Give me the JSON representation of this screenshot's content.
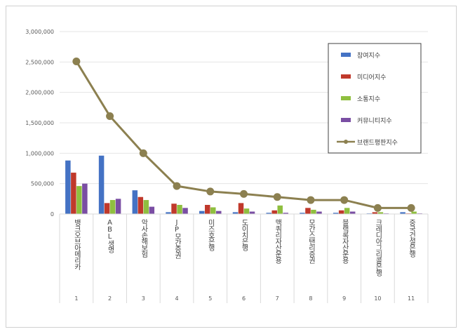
{
  "chart_data": {
    "type": "bar",
    "title": "",
    "xlabel": "",
    "ylabel": "",
    "ylim": [
      0,
      3000000
    ],
    "yticks": [
      "0",
      "500,000",
      "1,000,000",
      "1,500,000",
      "2,000,000",
      "2,500,000",
      "3,000,000"
    ],
    "grid": true,
    "legend_position": "top-right",
    "categories": [
      "뱅크오브아메리카",
      "ABL생명",
      "악사손해보험",
      "JP모간증권",
      "미즈호은행",
      "도이치은행",
      "맥쿼리자산운용",
      "모간스탠리증권",
      "블랙록자산운용",
      "크레디아그리콜은행",
      "중국건설은행"
    ],
    "ranks": [
      "1",
      "2",
      "3",
      "4",
      "5",
      "6",
      "7",
      "8",
      "9",
      "10",
      "11"
    ],
    "series": [
      {
        "name": "참여지수",
        "type": "bar",
        "color": "#4472c4",
        "values": [
          880000,
          960000,
          390000,
          30000,
          50000,
          30000,
          20000,
          20000,
          20000,
          10000,
          30000
        ]
      },
      {
        "name": "미디어지수",
        "type": "bar",
        "color": "#c0392b",
        "values": [
          680000,
          180000,
          280000,
          170000,
          150000,
          180000,
          60000,
          100000,
          60000,
          30000,
          10000
        ]
      },
      {
        "name": "소통지수",
        "type": "bar",
        "color": "#8fbf3f",
        "values": [
          460000,
          230000,
          230000,
          150000,
          110000,
          90000,
          140000,
          70000,
          100000,
          30000,
          40000
        ]
      },
      {
        "name": "커뮤니티지수",
        "type": "bar",
        "color": "#7a4ea3",
        "values": [
          500000,
          250000,
          120000,
          100000,
          50000,
          40000,
          20000,
          40000,
          40000,
          10000,
          10000
        ]
      },
      {
        "name": "브랜드평판지수",
        "type": "line",
        "color": "#8c8050",
        "values": [
          2510000,
          1610000,
          1000000,
          460000,
          370000,
          330000,
          280000,
          230000,
          230000,
          100000,
          100000
        ]
      }
    ]
  }
}
